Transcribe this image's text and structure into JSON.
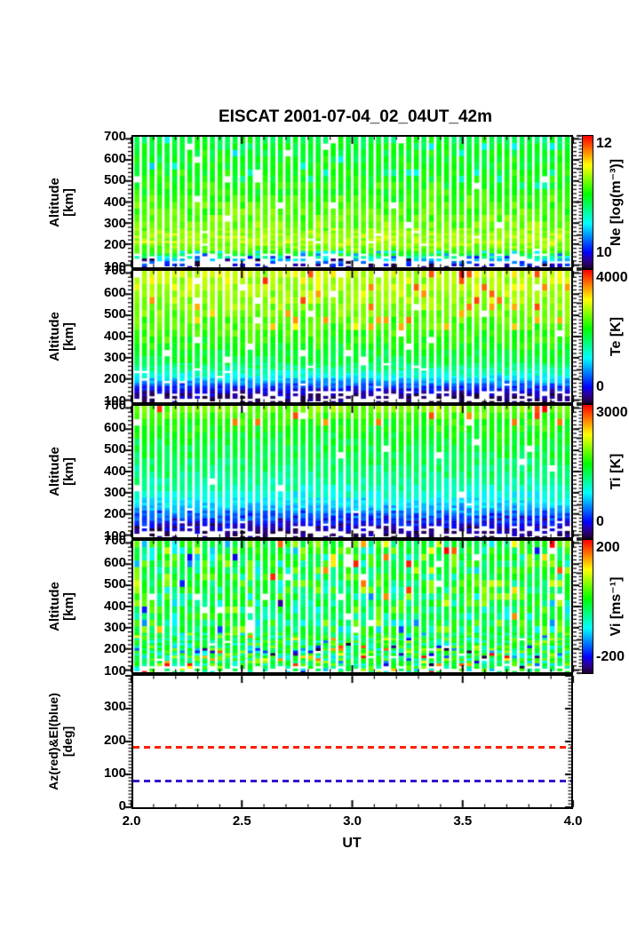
{
  "figure": {
    "title": "EISCAT 2001-07-04_02_04UT_42m"
  },
  "x_axis": {
    "label": "UT",
    "min": 2.0,
    "max": 4.0,
    "tick_values": [
      2.0,
      2.5,
      3.0,
      3.5,
      4.0
    ],
    "tick_labels": [
      "2.0",
      "2.5",
      "3.0",
      "3.5",
      "4.0"
    ],
    "minor_step": 0.1
  },
  "altitude_axis": {
    "label_line1": "Altitude",
    "label_line2": "[km]",
    "min": 90,
    "max": 710,
    "tick_values": [
      100,
      200,
      300,
      400,
      500,
      600,
      700
    ],
    "minor_step": 20
  },
  "chart_data": [
    {
      "type": "heatmap",
      "id": "ne",
      "quantity": "electron density",
      "colorbar_label": "Ne [log(m⁻³)]",
      "vmin": 10,
      "vmax": 12,
      "cb_max_label": "12",
      "cb_min_label": "10",
      "profile": [
        [
          710,
          11.0
        ],
        [
          620,
          11.08
        ],
        [
          450,
          11.16
        ],
        [
          300,
          11.3
        ],
        [
          210,
          11.42
        ],
        [
          165,
          11.25
        ],
        [
          145,
          10.95
        ],
        [
          118,
          10.45
        ],
        [
          90,
          10.12
        ]
      ],
      "noise": 0.11,
      "speckles": [
        {
          "alt_min": 450,
          "alt_max": 710,
          "prob": 0.06,
          "amp": -0.35
        },
        {
          "alt_min": 90,
          "alt_max": 165,
          "prob": 0.25,
          "amp": -0.55
        }
      ],
      "missing": [
        {
          "below": 160,
          "prob": 0.3
        },
        {
          "below": 125,
          "prob": 0.55
        },
        {
          "below": 100,
          "prob": 0.68
        }
      ],
      "base_missing": 0.015
    },
    {
      "type": "heatmap",
      "id": "te",
      "quantity": "electron temperature",
      "colorbar_label": "Te [K]",
      "vmin": 0,
      "vmax": 4000,
      "cb_max_label": "4000",
      "cb_min_label": "0",
      "profile": [
        [
          710,
          2950
        ],
        [
          600,
          2800
        ],
        [
          480,
          2550
        ],
        [
          380,
          2300
        ],
        [
          300,
          2050
        ],
        [
          250,
          1800
        ],
        [
          215,
          1450
        ],
        [
          185,
          1000
        ],
        [
          160,
          620
        ],
        [
          140,
          350
        ],
        [
          115,
          200
        ],
        [
          90,
          120
        ]
      ],
      "noise": 210,
      "speckles": [
        {
          "alt_min": 430,
          "alt_max": 710,
          "prob": 0.04,
          "prob_end": 0.13,
          "amp": 850
        },
        {
          "alt_min": 90,
          "alt_max": 130,
          "prob": 0.3,
          "amp": -140
        }
      ],
      "missing": [
        {
          "below": 145,
          "prob": 0.35
        },
        {
          "below": 110,
          "prob": 0.6
        }
      ],
      "base_missing": 0.02
    },
    {
      "type": "heatmap",
      "id": "ti",
      "quantity": "ion temperature",
      "colorbar_label": "Ti [K]",
      "vmin": 0,
      "vmax": 3000,
      "cb_max_label": "3000",
      "cb_min_label": "0",
      "profile": [
        [
          710,
          2050
        ],
        [
          640,
          1750
        ],
        [
          520,
          1550
        ],
        [
          400,
          1380
        ],
        [
          320,
          1200
        ],
        [
          260,
          1000
        ],
        [
          210,
          750
        ],
        [
          170,
          480
        ],
        [
          140,
          280
        ],
        [
          115,
          180
        ],
        [
          90,
          110
        ]
      ],
      "noise": 150,
      "speckles": [
        {
          "alt_min": 620,
          "alt_max": 710,
          "prob": 0.09,
          "amp": 900
        },
        {
          "alt_min": 90,
          "alt_max": 210,
          "prob": 0.14,
          "amp": -220
        }
      ],
      "missing": [
        {
          "below": 145,
          "prob": 0.35
        },
        {
          "below": 105,
          "prob": 0.6
        }
      ],
      "base_missing": 0.02
    },
    {
      "type": "heatmap",
      "id": "vi",
      "quantity": "ion velocity",
      "colorbar_label": "Vi [ms⁻¹]",
      "vmin": -200,
      "vmax": 200,
      "cb_max_label": "200",
      "cb_min_label": "-200",
      "profile": [
        [
          710,
          15
        ],
        [
          90,
          0
        ]
      ],
      "noise": 62,
      "speckles": [
        {
          "alt_min": 600,
          "alt_max": 710,
          "prob": 0.2,
          "amp_range": [
            -195,
            195
          ]
        },
        {
          "alt_min": 90,
          "alt_max": 220,
          "prob": 0.24,
          "amp_range": [
            -195,
            195
          ]
        },
        {
          "alt_min": 220,
          "alt_max": 600,
          "prob": 0.05,
          "amp_range": [
            -175,
            175
          ]
        }
      ],
      "missing": [
        {
          "below": 115,
          "prob": 0.5
        },
        {
          "below": 100,
          "prob": 0.62
        }
      ],
      "base_missing": 0.02
    },
    {
      "type": "line",
      "id": "pointing",
      "ylabel_line1": "Az(red)&El(blue)",
      "ylabel_line2": "[deg]",
      "ymin": 0,
      "ymax": 400,
      "tick_values": [
        0,
        100,
        200,
        300
      ],
      "tick_labels": [
        "0",
        "100",
        "200",
        "300"
      ],
      "minor_step": 10,
      "series": [
        {
          "name": "Az",
          "color": "#ff1e00",
          "style": "dashed",
          "value": 185
        },
        {
          "name": "El",
          "color": "#3513cc",
          "style": "dashed",
          "value": 80
        }
      ]
    }
  ],
  "render": {
    "seed": 20010704,
    "columns": 58,
    "colormap": "rainbow",
    "row_edges": [
      710,
      679,
      648,
      617,
      586,
      555,
      524,
      493,
      462,
      431,
      400,
      369,
      338,
      307,
      276,
      264,
      252,
      240,
      228,
      216,
      204,
      192,
      180,
      168,
      156,
      144,
      132,
      120,
      108,
      96,
      90
    ]
  }
}
